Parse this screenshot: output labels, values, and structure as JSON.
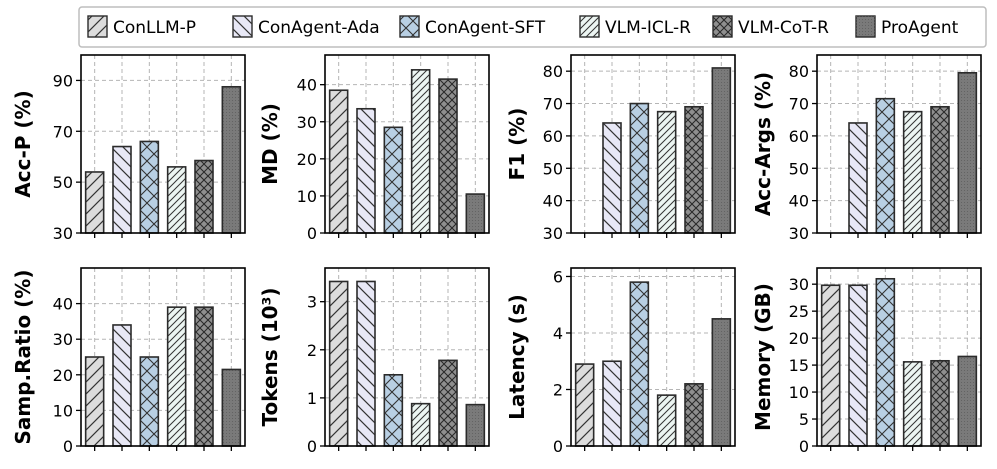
{
  "legend": [
    {
      "name": "ConLLM-P",
      "color": "#dcdcdc",
      "hatch": "diag-up"
    },
    {
      "name": "ConAgent-Ada",
      "color": "#e8e8f6",
      "hatch": "diag-down"
    },
    {
      "name": "ConAgent-SFT",
      "color": "#b8cfe3",
      "hatch": "cross"
    },
    {
      "name": "VLM-ICL-R",
      "color": "#ecf5f2",
      "hatch": "diag-up-dense"
    },
    {
      "name": "VLM-CoT-R",
      "color": "#8f8f8f",
      "hatch": "cross-dense"
    },
    {
      "name": "ProAgent",
      "color": "#7a7a7a",
      "hatch": "dots"
    }
  ],
  "chart_data": [
    {
      "type": "bar",
      "ylabel": "Acc-P (%)",
      "ylim": [
        30,
        100
      ],
      "yticks": [
        30,
        50,
        70,
        90
      ],
      "series": [
        {
          "name": "ConLLM-P",
          "value": 54
        },
        {
          "name": "ConAgent-Ada",
          "value": 64
        },
        {
          "name": "ConAgent-SFT",
          "value": 66
        },
        {
          "name": "VLM-ICL-R",
          "value": 56
        },
        {
          "name": "VLM-CoT-R",
          "value": 58.5
        },
        {
          "name": "ProAgent",
          "value": 87.5
        }
      ]
    },
    {
      "type": "bar",
      "ylabel": "MD (%)",
      "ylim": [
        0,
        48
      ],
      "yticks": [
        0,
        10,
        20,
        30,
        40
      ],
      "series": [
        {
          "name": "ConLLM-P",
          "value": 38.5
        },
        {
          "name": "ConAgent-Ada",
          "value": 33.5
        },
        {
          "name": "ConAgent-SFT",
          "value": 28.5
        },
        {
          "name": "VLM-ICL-R",
          "value": 44
        },
        {
          "name": "VLM-CoT-R",
          "value": 41.5
        },
        {
          "name": "ProAgent",
          "value": 10.5
        }
      ]
    },
    {
      "type": "bar",
      "ylabel": "F1 (%)",
      "ylim": [
        30,
        85
      ],
      "yticks": [
        30,
        40,
        50,
        60,
        70,
        80
      ],
      "series": [
        {
          "name": "ConLLM-P",
          "value": 0
        },
        {
          "name": "ConAgent-Ada",
          "value": 64
        },
        {
          "name": "ConAgent-SFT",
          "value": 70
        },
        {
          "name": "VLM-ICL-R",
          "value": 67.5
        },
        {
          "name": "VLM-CoT-R",
          "value": 69
        },
        {
          "name": "ProAgent",
          "value": 81
        }
      ]
    },
    {
      "type": "bar",
      "ylabel": "Acc-Args (%)",
      "ylim": [
        30,
        85
      ],
      "yticks": [
        30,
        40,
        50,
        60,
        70,
        80
      ],
      "series": [
        {
          "name": "ConLLM-P",
          "value": 0
        },
        {
          "name": "ConAgent-Ada",
          "value": 64
        },
        {
          "name": "ConAgent-SFT",
          "value": 71.5
        },
        {
          "name": "VLM-ICL-R",
          "value": 67.5
        },
        {
          "name": "VLM-CoT-R",
          "value": 69
        },
        {
          "name": "ProAgent",
          "value": 79.5
        }
      ]
    },
    {
      "type": "bar",
      "ylabel": "Samp.Ratio (%)",
      "ylim": [
        0,
        50
      ],
      "yticks": [
        0,
        10,
        20,
        30,
        40
      ],
      "series": [
        {
          "name": "ConLLM-P",
          "value": 25
        },
        {
          "name": "ConAgent-Ada",
          "value": 34
        },
        {
          "name": "ConAgent-SFT",
          "value": 25
        },
        {
          "name": "VLM-ICL-R",
          "value": 39
        },
        {
          "name": "VLM-CoT-R",
          "value": 39
        },
        {
          "name": "ProAgent",
          "value": 21.5
        }
      ]
    },
    {
      "type": "bar",
      "ylabel": "Tokens (10³)",
      "ylim": [
        0,
        3.7
      ],
      "yticks": [
        0,
        1,
        2,
        3
      ],
      "series": [
        {
          "name": "ConLLM-P",
          "value": 3.42
        },
        {
          "name": "ConAgent-Ada",
          "value": 3.42
        },
        {
          "name": "ConAgent-SFT",
          "value": 1.48
        },
        {
          "name": "VLM-ICL-R",
          "value": 0.88
        },
        {
          "name": "VLM-CoT-R",
          "value": 1.78
        },
        {
          "name": "ProAgent",
          "value": 0.86
        }
      ]
    },
    {
      "type": "bar",
      "ylabel": "Latency (s)",
      "ylim": [
        0,
        6.3
      ],
      "yticks": [
        0,
        2,
        4,
        6
      ],
      "series": [
        {
          "name": "ConLLM-P",
          "value": 2.9
        },
        {
          "name": "ConAgent-Ada",
          "value": 3.0
        },
        {
          "name": "ConAgent-SFT",
          "value": 5.8
        },
        {
          "name": "VLM-ICL-R",
          "value": 1.8
        },
        {
          "name": "VLM-CoT-R",
          "value": 2.2
        },
        {
          "name": "ProAgent",
          "value": 4.5
        }
      ]
    },
    {
      "type": "bar",
      "ylabel": "Memory (GB)",
      "ylim": [
        0,
        33
      ],
      "yticks": [
        0,
        5,
        10,
        15,
        20,
        25,
        30
      ],
      "series": [
        {
          "name": "ConLLM-P",
          "value": 29.8
        },
        {
          "name": "ConAgent-Ada",
          "value": 29.8
        },
        {
          "name": "ConAgent-SFT",
          "value": 31
        },
        {
          "name": "VLM-ICL-R",
          "value": 15.6
        },
        {
          "name": "VLM-CoT-R",
          "value": 15.8
        },
        {
          "name": "ProAgent",
          "value": 16.6
        }
      ]
    }
  ]
}
